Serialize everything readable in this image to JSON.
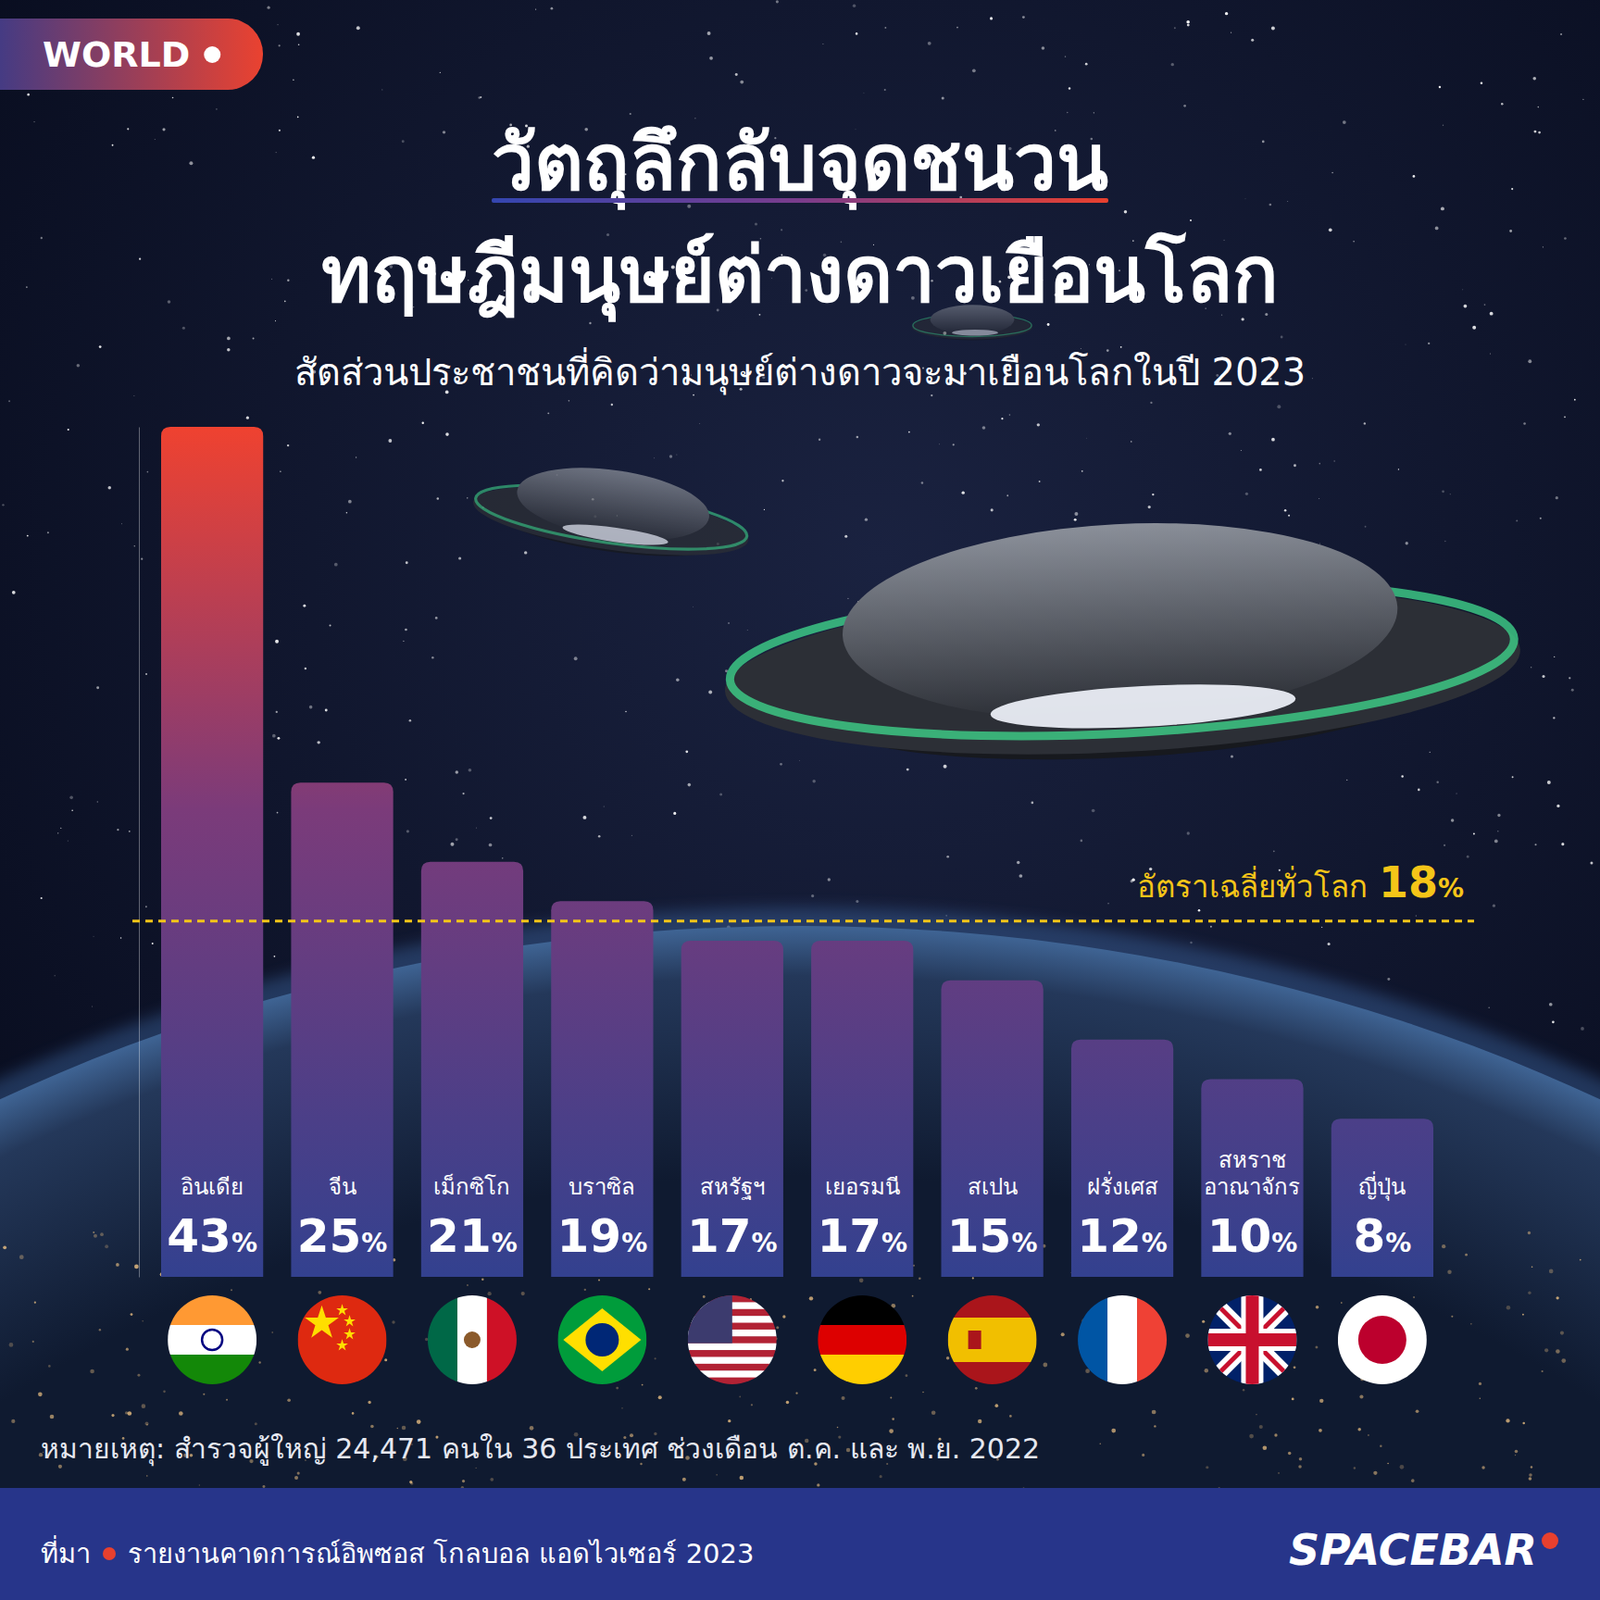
{
  "chart_data": {
    "type": "bar",
    "badge": "WORLD",
    "title": [
      "วัตถุลึกลับจุดชนวน",
      "ทฤษฎีมนุษย์ต่างดาวเยือนโลก"
    ],
    "subtitle": "สัดส่วนประชาชนที่คิดว่ามนุษย์ต่างดาวจะมาเยือนโลกในปี 2023",
    "categories": [
      "อินเดีย",
      "จีน",
      "เม็กซิโก",
      "บราซิล",
      "สหรัฐฯ",
      "เยอรมนี",
      "สเปน",
      "ฝรั่งเศส",
      "สหราช อาณาจักร",
      "ญี่ปุ่น"
    ],
    "values": [
      43,
      25,
      21,
      19,
      17,
      17,
      15,
      12,
      10,
      8
    ],
    "value_labels": [
      "43%",
      "25%",
      "21%",
      "19%",
      "17%",
      "17%",
      "15%",
      "12%",
      "10%",
      "8%"
    ],
    "data_labels": true,
    "color": "#7b3b7a",
    "ylim": [
      0,
      43
    ],
    "yticks": [],
    "tick_labels": false,
    "grid": false,
    "annotations": [
      {
        "text": "อัตราเฉลี่ยทั่วโลก",
        "value": 18,
        "label": "18%"
      }
    ],
    "note": "หมายเหตุ: สำรวจผู้ใหญ่ 24,471 คนใน 36 ประเทศ ช่วงเดือน ต.ค. และ พ.ย. 2022",
    "source_label": "ที่มา",
    "source": "รายงานคาดการณ์อิพซอส โกลบอล แอดไวเซอร์ 2023",
    "brand": "SPACEBAR"
  }
}
